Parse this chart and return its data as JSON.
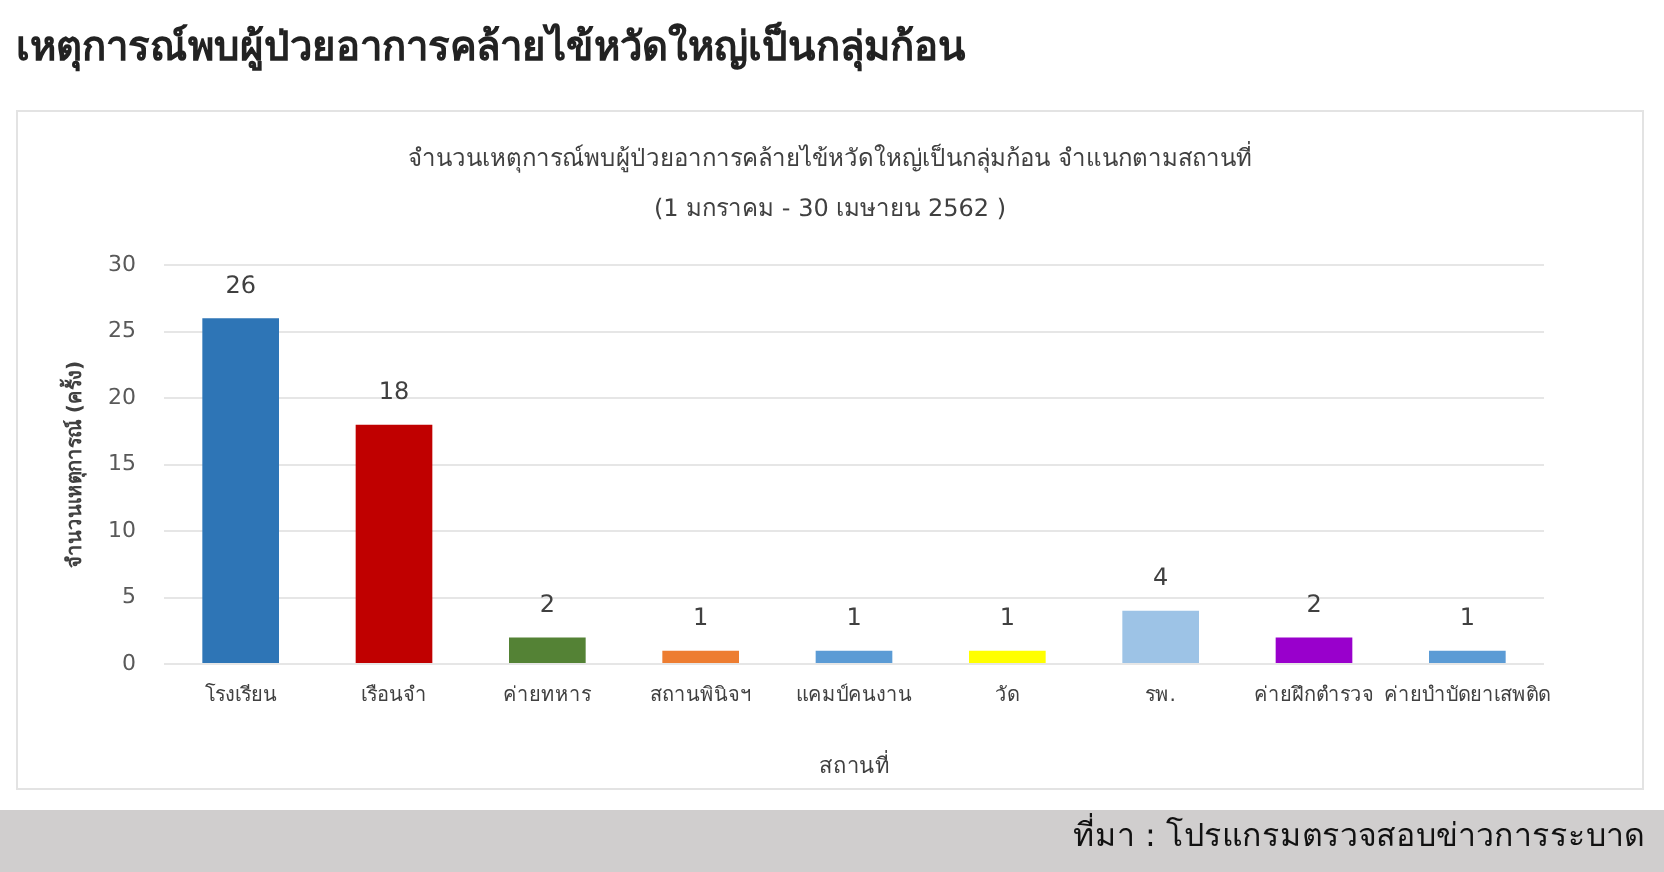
{
  "chart_data": {
    "type": "bar",
    "title": "เหตุการณ์พบผู้ป่วยอาการคล้ายไข้หวัดใหญ่เป็นกลุ่มก้อน",
    "subtitle": "จำนวนเหตุการณ์พบผู้ป่วยอาการคล้ายไข้หวัดใหญ่เป็นกลุ่มก้อน จำแนกตามสถานที่",
    "xlabel": "สถานที่",
    "ylabel": "จำนวนเหตุการณ์ (ครั้ง)",
    "annotations": [
      "(1 มกราคม - 30 เมษายน 2562 )",
      "ที่มา : โปรแกรมตรวจสอบข่าวการระบาด"
    ],
    "categories": [
      "โรงเรียน",
      "เรือนจำ",
      "ค่ายทหาร",
      "สถานพินิจฯ",
      "แคมป์คนงาน",
      "วัด",
      "รพ.",
      "ค่ายฝึกตำรวจ",
      "ค่ายบำบัดยาเสพติด"
    ],
    "values": [
      26,
      18,
      2,
      1,
      1,
      1,
      4,
      2,
      1
    ],
    "colors": [
      "#2e75b6",
      "#c00000",
      "#548235",
      "#ed7d31",
      "#5b9bd5",
      "#ffff00",
      "#9dc3e6",
      "#9900cc",
      "#5b9bd5"
    ],
    "ylim": [
      0,
      30
    ],
    "yticks": [
      0,
      5,
      10,
      15,
      20,
      25,
      30
    ],
    "grid": "y",
    "data_labels": true
  }
}
